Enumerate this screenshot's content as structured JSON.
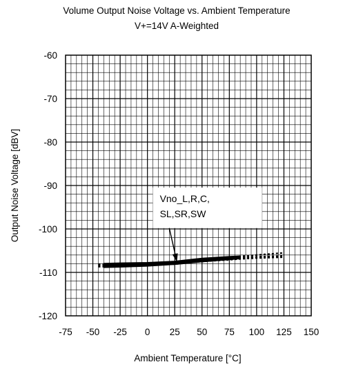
{
  "chart_data": {
    "type": "line",
    "title": "Volume  Output Noise Voltage vs. Ambient Temperature",
    "subtitle": "V+=14V A-Weighted",
    "xlabel": "Ambient Temperature [°C]",
    "ylabel": "Output Noise Voltage [dBV]",
    "xlim": [
      -75,
      150
    ],
    "ylim": [
      -120,
      -60
    ],
    "x_ticks": [
      -75,
      -50,
      -25,
      0,
      25,
      50,
      75,
      100,
      125,
      150
    ],
    "y_ticks": [
      -60,
      -70,
      -80,
      -90,
      -100,
      -110,
      -120
    ],
    "x_tick_labels": [
      "-75",
      "-50",
      "-25",
      "0",
      "25",
      "50",
      "75",
      "100",
      "125",
      "150"
    ],
    "y_tick_labels": [
      "-60",
      "-70",
      "-80",
      "-90",
      "-100",
      "-110",
      "-120"
    ],
    "grid": true,
    "minor_grid": {
      "x_step": 5,
      "y_step": 2
    },
    "line_color": "#000000",
    "band": {
      "x": [
        -40,
        -25,
        0,
        25,
        50,
        75,
        85
      ],
      "upper": [
        -107.9,
        -107.8,
        -107.7,
        -107.4,
        -106.7,
        -106.3,
        -106.2
      ],
      "lower": [
        -108.9,
        -108.8,
        -108.6,
        -108.2,
        -107.6,
        -107.1,
        -106.9
      ]
    },
    "series": [
      {
        "x": [
          -45,
          -40,
          -25,
          0,
          25,
          50,
          75,
          85,
          100,
          125
        ],
        "y": [
          -108.4,
          -108.4,
          -108.3,
          -108.2,
          -107.9,
          -107.3,
          -106.8,
          -106.6,
          -106.4,
          -106.2
        ]
      },
      {
        "x": [
          -45,
          -40,
          -25,
          0,
          25,
          50,
          75,
          85,
          100,
          125
        ],
        "y": [
          -108.7,
          -108.7,
          -108.6,
          -108.4,
          -108.1,
          -107.5,
          -107.1,
          -106.9,
          -106.7,
          -106.5
        ]
      },
      {
        "x": [
          -45,
          -40,
          -25,
          0,
          25,
          50,
          75,
          85,
          100,
          125
        ],
        "y": [
          -108.1,
          -108.1,
          -108.0,
          -107.9,
          -107.6,
          -107.0,
          -106.5,
          -106.3,
          -106.0,
          -105.5
        ]
      }
    ],
    "annotation": {
      "lines": [
        "Vno_L,R,C,",
        "SL,SR,SW"
      ],
      "box": {
        "x1": 5,
        "x2": 105,
        "y1": -90.5,
        "y2": -99.8
      },
      "arrow_from": {
        "x": 20,
        "y": -99.8
      },
      "arrow_to": {
        "x": 27,
        "y": -107.6
      }
    }
  }
}
